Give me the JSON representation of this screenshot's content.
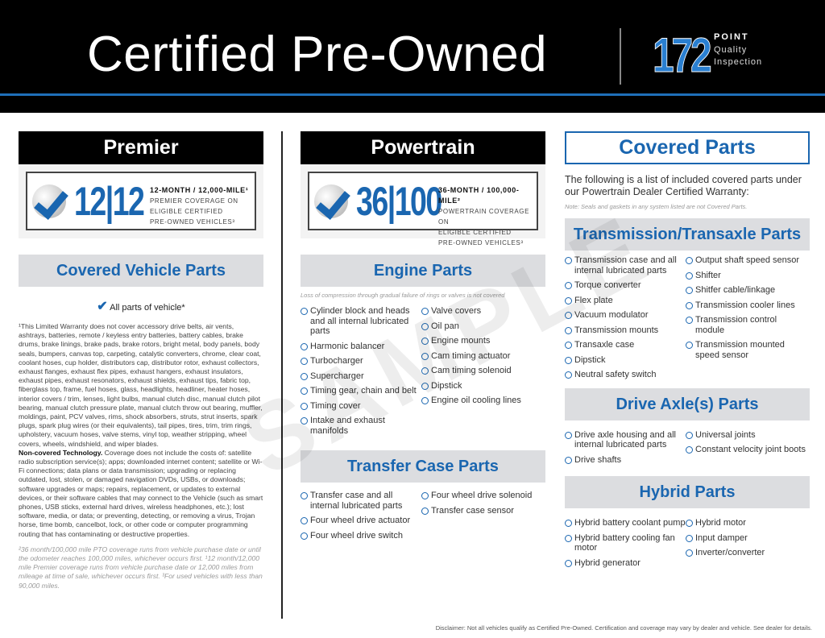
{
  "header": {
    "title": "Certified Pre-Owned",
    "inspection_number": "172",
    "inspection_line1": "POINT",
    "inspection_line2": "Quality",
    "inspection_line3": "Inspection",
    "accent": "#1f6fb8"
  },
  "premier": {
    "title": "Premier",
    "badge_numbers": "12|12",
    "badge_headline": "12-MONTH / 12,000-MILE¹",
    "badge_line2": "PREMIER COVERAGE ON",
    "badge_line3": "ELIGIBLE CERTIFIED",
    "badge_line4": "PRE-OWNED VEHICLES³",
    "section_title": "Covered Vehicle Parts",
    "all_parts": "All parts of vehicle*",
    "exclusions": "¹This Limited Warranty does not cover accessory drive belts, air vents, ashtrays, batteries, remote / keyless entry batteries, battery cables, brake drums, brake linings, brake pads, brake rotors, bright metal, body panels, body seals, bumpers, canvas top, carpeting, catalytic converters, chrome, clear coat, coolant hoses, cup holder, distributors cap, distributor rotor, exhaust collectors, exhaust flanges, exhaust flex pipes, exhaust hangers, exhaust insulators, exhaust pipes, exhaust resonators, exhaust shields, exhaust tips, fabric top, fiberglass top, frame, fuel hoses, glass, headlights, headliner, heater hoses, interior covers / trim, lenses, light bulbs, manual clutch disc, manual clutch pilot bearing, manual clutch pressure plate, manual clutch throw out bearing, muffler, moldings, paint, PCV valves, rims, shock absorbers, struts, strut inserts, spark plugs, spark plug wires (or their equivalents), tail pipes, tires, trim, trim rings, upholstery, vacuum hoses, valve stems, vinyl top, weather stripping, wheel covers, wheels, windshield, and wiper blades.",
    "tech_label": "Non-covered Technology.",
    "tech_text": " Coverage does not include the costs of: satellite radio subscription service(s); apps; downloaded internet content; satellite or Wi-Fi connections; data plans or data transmission; upgrading or replacing outdated, lost, stolen, or damaged navigation DVDs, USBs, or downloads; software upgrades or maps; repairs, replacement, or updates to external devices, or their software cables that may connect to the Vehicle (such as smart phones, USB sticks, external hard drives, wireless headphones, etc.); lost software, media, or data; or preventing, detecting, or removing a virus, Trojan horse, time bomb, cancelbot, lock, or other code or computer programming routing that has contaminating or destructive properties.",
    "footnote": "²36 month/100,000 mile PTO coverage runs from vehicle purchase date or until the odometer reaches 100,000 miles, whichever occurs first. ¹12 month/12,000 mile Premier coverage runs from vehicle purchase date or 12,000 miles from mileage at time of sale, whichever occurs first. ³For used vehicles with less than 90,000 miles."
  },
  "powertrain": {
    "title": "Powertrain",
    "badge_numbers": "36|100",
    "badge_headline": "36-MONTH / 100,000-MILE²",
    "badge_line2": "POWERTRAIN COVERAGE ON",
    "badge_line3": "ELIGIBLE CERTIFIED",
    "badge_line4": "PRE-OWNED VEHICLES³",
    "engine_title": "Engine Parts",
    "engine_note": "Loss of compression through gradual failure of rings or valves is not covered",
    "engine_col1": [
      "Cylinder block and heads and all internal lubricated parts",
      "Harmonic balancer",
      "Turbocharger",
      "Supercharger",
      "Timing gear, chain and belt",
      "Timing cover",
      "Intake and exhaust manifolds"
    ],
    "engine_col2": [
      "Valve covers",
      "Oil pan",
      "Engine mounts",
      "Cam timing actuator",
      "Cam timing solenoid",
      "Dipstick",
      "Engine oil cooling lines"
    ],
    "transfer_title": "Transfer Case Parts",
    "transfer_col1": [
      "Transfer case and all internal lubricated parts",
      "Four wheel drive actuator",
      "Four wheel drive switch"
    ],
    "transfer_col2": [
      "Four wheel drive solenoid",
      "Transfer case sensor"
    ]
  },
  "covered": {
    "title": "Covered Parts",
    "intro": "The following is a list of included covered parts under our Powertrain Dealer Certified Warranty:",
    "note": "Note: Seals and gaskets in any system listed are not Covered Parts.",
    "trans_title": "Transmission/Transaxle Parts",
    "trans_col1": [
      "Transmission case and all internal lubricated parts",
      "Torque converter",
      "Flex plate",
      "Vacuum modulator",
      "Transmission mounts",
      "Transaxle case",
      "Dipstick",
      "Neutral safety switch"
    ],
    "trans_col2": [
      "Output shaft speed sensor",
      "Shifter",
      "Shitfer cable/linkage",
      "Transmission cooler lines",
      "Transmission control module",
      "Transmission mounted speed sensor"
    ],
    "axle_title": "Drive Axle(s) Parts",
    "axle_col1": [
      "Drive axle housing and all internal lubricated parts",
      "Drive shafts"
    ],
    "axle_col2": [
      "Universal joints",
      "Constant velocity joint boots"
    ],
    "hybrid_title": "Hybrid Parts",
    "hybrid_col1": [
      "Hybrid battery coolant pump",
      "Hybrid battery cooling fan motor",
      "Hybrid generator"
    ],
    "hybrid_col2": [
      "Hybrid motor",
      "Input damper",
      "Inverter/converter"
    ]
  },
  "watermark": "SAMPLE",
  "disclaimer": "Disclaimer: Not all vehicles qualify as Certified Pre-Owned. Certification and coverage may vary by dealer and vehicle. See dealer for details."
}
